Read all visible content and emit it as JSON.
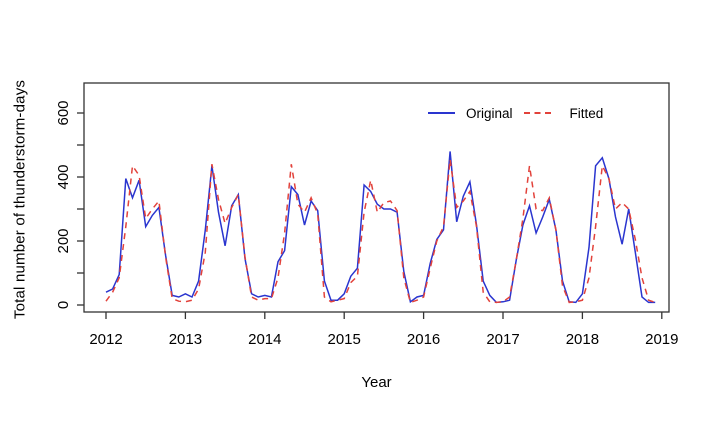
{
  "chart_data": {
    "type": "line",
    "title": "",
    "xlabel": "Year",
    "ylabel": "Total number of thunderstorm-days",
    "x_ticks": [
      2012,
      2013,
      2014,
      2015,
      2016,
      2017,
      2018,
      2019
    ],
    "y_ticks_all": [
      0,
      100,
      200,
      300,
      400,
      500,
      600
    ],
    "y_tick_labels": [
      0,
      200,
      400,
      600
    ],
    "ylim": [
      0,
      600
    ],
    "grid": "off",
    "legend_position": "top-inside-right",
    "frame_color": "#333333",
    "x_start_year": 2012,
    "points_per_year": 12,
    "series": [
      {
        "name": "Original",
        "color": "#2a35cf",
        "style": "solid",
        "values": [
          40,
          50,
          95,
          395,
          335,
          390,
          245,
          280,
          305,
          155,
          30,
          25,
          35,
          25,
          75,
          235,
          435,
          290,
          185,
          310,
          345,
          145,
          35,
          25,
          30,
          25,
          135,
          170,
          370,
          345,
          250,
          325,
          295,
          75,
          15,
          15,
          35,
          90,
          115,
          375,
          355,
          315,
          300,
          300,
          290,
          105,
          10,
          25,
          30,
          130,
          205,
          235,
          480,
          260,
          340,
          385,
          250,
          75,
          30,
          8,
          10,
          15,
          140,
          250,
          310,
          225,
          275,
          330,
          235,
          75,
          10,
          8,
          35,
          180,
          435,
          460,
          395,
          275,
          190,
          300,
          165,
          25,
          8,
          8
        ]
      },
      {
        "name": "Fitted",
        "color": "#e2423b",
        "style": "dashed",
        "values": [
          12,
          40,
          85,
          245,
          435,
          405,
          270,
          300,
          325,
          150,
          20,
          12,
          10,
          15,
          50,
          165,
          440,
          330,
          255,
          305,
          345,
          150,
          25,
          15,
          20,
          20,
          85,
          225,
          440,
          315,
          290,
          335,
          285,
          25,
          10,
          15,
          20,
          70,
          90,
          290,
          390,
          290,
          320,
          325,
          295,
          85,
          8,
          15,
          25,
          115,
          200,
          245,
          455,
          305,
          325,
          355,
          245,
          40,
          10,
          8,
          10,
          25,
          140,
          270,
          435,
          300,
          295,
          335,
          235,
          60,
          8,
          10,
          15,
          85,
          245,
          435,
          395,
          300,
          320,
          300,
          205,
          85,
          15,
          8
        ]
      }
    ]
  }
}
